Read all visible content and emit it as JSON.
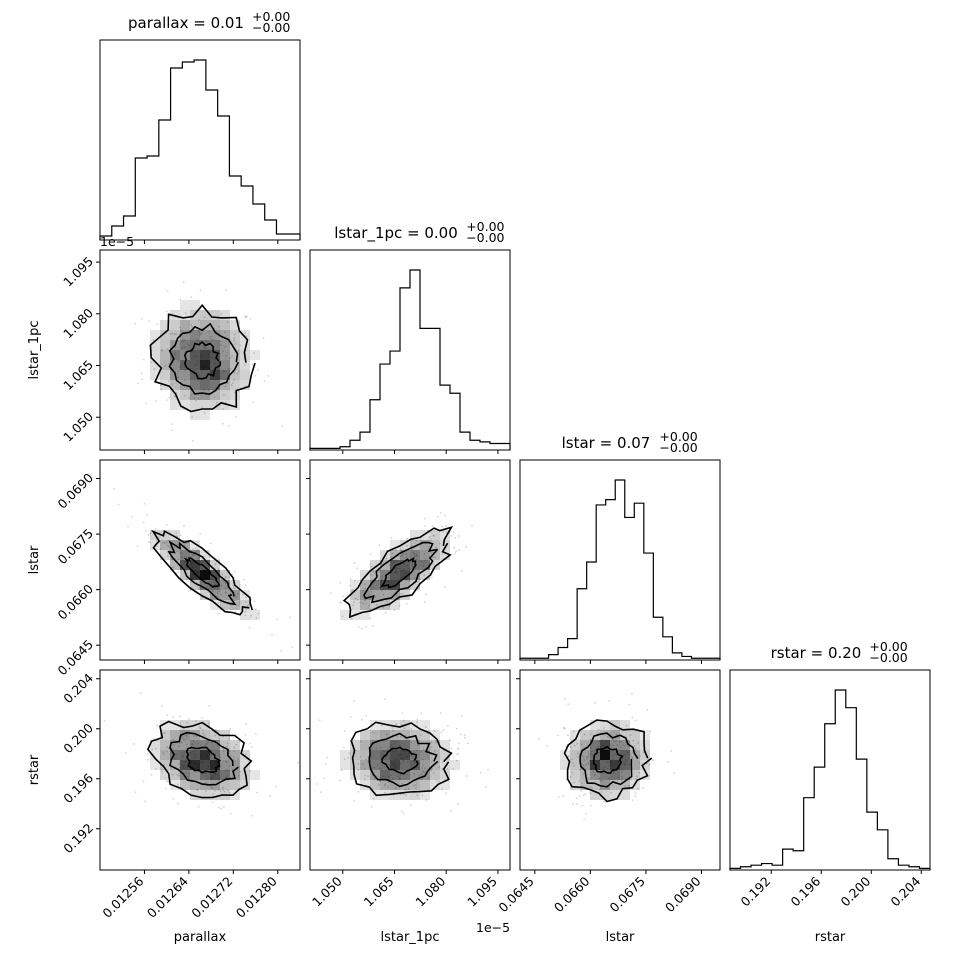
{
  "chart_data": {
    "type": "corner",
    "parameters": [
      {
        "key": "parallax",
        "label": "parallax",
        "title": "parallax = 0.01",
        "title_sup": "+0.00",
        "title_sub": "−0.00",
        "range": [
          0.01248,
          0.01284
        ],
        "ticks": [
          0.01256,
          0.01264,
          0.01272,
          0.0128
        ],
        "tick_labels": [
          "0.01256",
          "0.01264",
          "0.01272",
          "0.01280"
        ],
        "offset_text": ""
      },
      {
        "key": "lstar_1pc",
        "label": "lstar_1pc",
        "title": "lstar_1pc = 0.00",
        "title_sup": "+0.00",
        "title_sub": "−0.00",
        "range": [
          1.0405,
          1.0985
        ],
        "ticks": [
          1.05,
          1.065,
          1.08,
          1.095
        ],
        "tick_labels": [
          "1.050",
          "1.065",
          "1.080",
          "1.095"
        ],
        "offset_text": "1e−5"
      },
      {
        "key": "lstar",
        "label": "lstar",
        "title": "lstar = 0.07",
        "title_sup": "+0.00",
        "title_sub": "−0.00",
        "range": [
          0.0641,
          0.0695
        ],
        "ticks": [
          0.0645,
          0.066,
          0.0675,
          0.069
        ],
        "tick_labels": [
          "0.0645",
          "0.0660",
          "0.0675",
          "0.0690"
        ],
        "offset_text": ""
      },
      {
        "key": "rstar",
        "label": "rstar",
        "title": "rstar = 0.20",
        "title_sup": "+0.00",
        "title_sub": "−0.00",
        "range": [
          0.1887,
          0.2047
        ],
        "ticks": [
          0.192,
          0.196,
          0.2,
          0.204
        ],
        "tick_labels": [
          "0.192",
          "0.196",
          "0.200",
          "0.204"
        ],
        "offset_text": ""
      }
    ],
    "histograms": [
      {
        "param": "parallax",
        "counts": [
          2,
          7,
          12,
          41,
          42,
          60,
          86,
          89,
          90,
          75,
          62,
          32,
          27,
          18,
          10,
          3,
          3
        ]
      },
      {
        "param": "lstar_1pc",
        "counts": [
          1,
          1,
          1,
          2,
          6,
          11,
          31,
          53,
          61,
          100,
          111,
          75,
          75,
          40,
          35,
          11,
          6,
          5,
          4,
          4
        ]
      },
      {
        "param": "lstar",
        "counts": [
          1,
          1,
          1,
          3,
          7,
          12,
          40,
          55,
          87,
          90,
          101,
          80,
          88,
          60,
          24,
          13,
          4,
          2,
          1,
          1,
          1
        ]
      },
      {
        "param": "rstar",
        "counts": [
          1,
          2,
          3,
          4,
          3,
          13,
          12,
          45,
          64,
          91,
          112,
          101,
          69,
          36,
          25,
          7,
          3,
          2,
          1
        ]
      }
    ],
    "pairs": [
      {
        "x": "parallax",
        "y": "lstar_1pc",
        "mean": [
          0.012664,
          1.0665
        ],
        "sd": [
          4.6e-05,
          0.0078
        ],
        "corr": -0.05
      },
      {
        "x": "parallax",
        "y": "lstar",
        "mean": [
          0.012664,
          0.06645
        ],
        "sd": [
          4.6e-05,
          0.0006
        ],
        "corr": -0.85
      },
      {
        "x": "lstar_1pc",
        "y": "lstar",
        "mean": [
          1.0665,
          0.06645
        ],
        "sd": [
          0.0078,
          0.0006
        ],
        "corr": 0.75
      },
      {
        "x": "parallax",
        "y": "rstar",
        "mean": [
          0.012664,
          0.1975
        ],
        "sd": [
          4.6e-05,
          0.0016
        ],
        "corr": -0.25
      },
      {
        "x": "lstar_1pc",
        "y": "rstar",
        "mean": [
          1.0665,
          0.1975
        ],
        "sd": [
          0.0078,
          0.0016
        ],
        "corr": -0.05
      },
      {
        "x": "lstar",
        "y": "rstar",
        "mean": [
          0.06645,
          0.1975
        ],
        "sd": [
          0.0006,
          0.0016
        ],
        "corr": 0.05
      }
    ],
    "contour_levels_sigma": [
      0.5,
      1.0,
      1.5
    ],
    "colors": {
      "line": "#000000",
      "density": "#000000",
      "points": "#b8b8b8"
    },
    "grid": false
  }
}
